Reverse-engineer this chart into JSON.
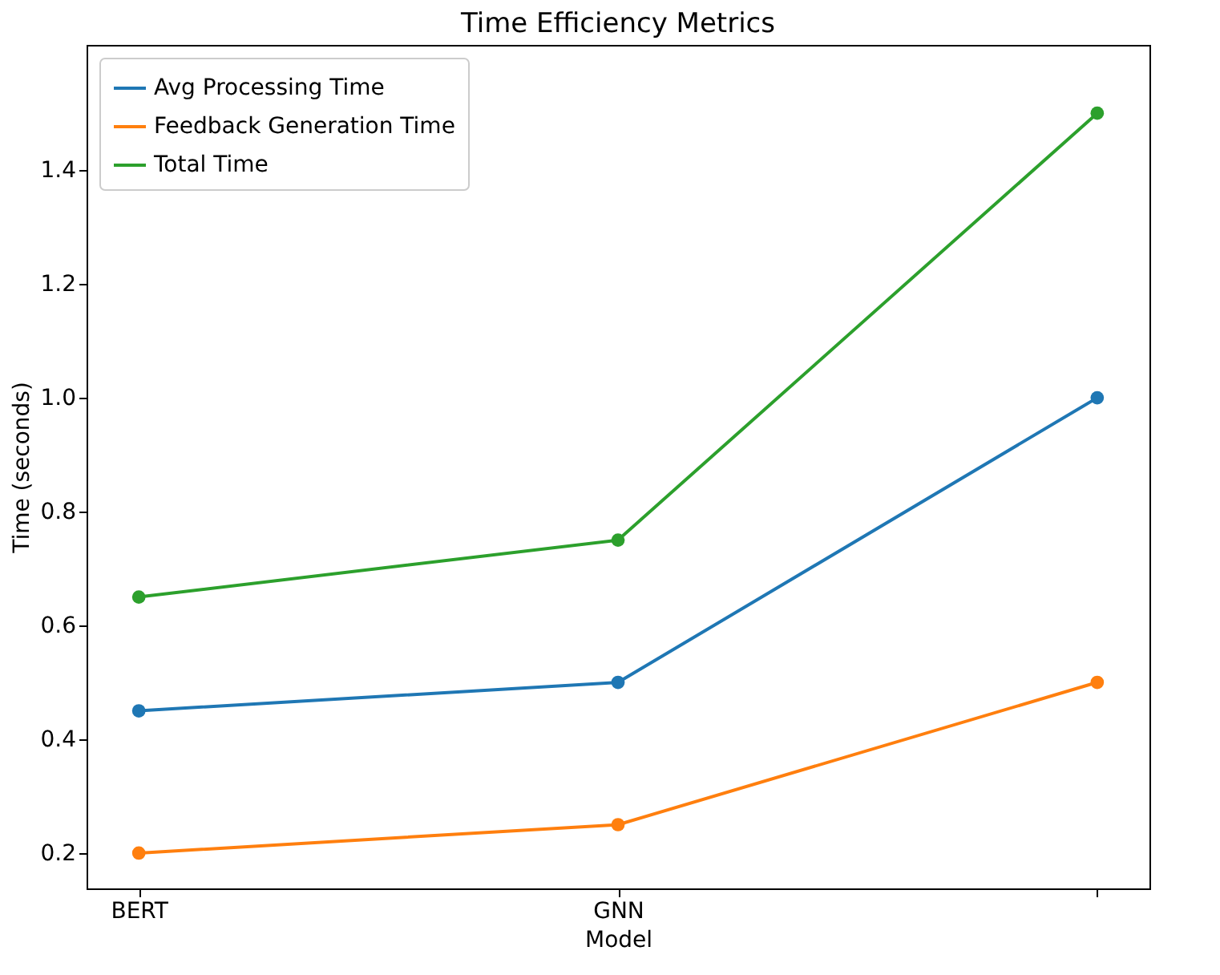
{
  "chart_data": {
    "type": "line",
    "title": "Time Efficiency Metrics",
    "xlabel": "Model",
    "ylabel": "Time (seconds)",
    "categories": [
      "BERT",
      "GNN",
      null
    ],
    "series": [
      {
        "name": "Avg Processing Time",
        "color": "#1f77b4",
        "values": [
          0.45,
          0.5,
          1.0
        ]
      },
      {
        "name": "Feedback Generation Time",
        "color": "#ff7f0e",
        "values": [
          0.2,
          0.25,
          0.5
        ]
      },
      {
        "name": "Total Time",
        "color": "#2ca02c",
        "values": [
          0.65,
          0.75,
          1.5
        ]
      }
    ],
    "ylim": [
      0.138,
      1.62
    ],
    "yticks": [
      0.2,
      0.4,
      0.6,
      0.8,
      {
        "value": 1.0,
        "label": "1.0"
      },
      1.2,
      1.4
    ],
    "grid": false,
    "legend": "top left",
    "marker": "circle",
    "line_style": "solid"
  }
}
